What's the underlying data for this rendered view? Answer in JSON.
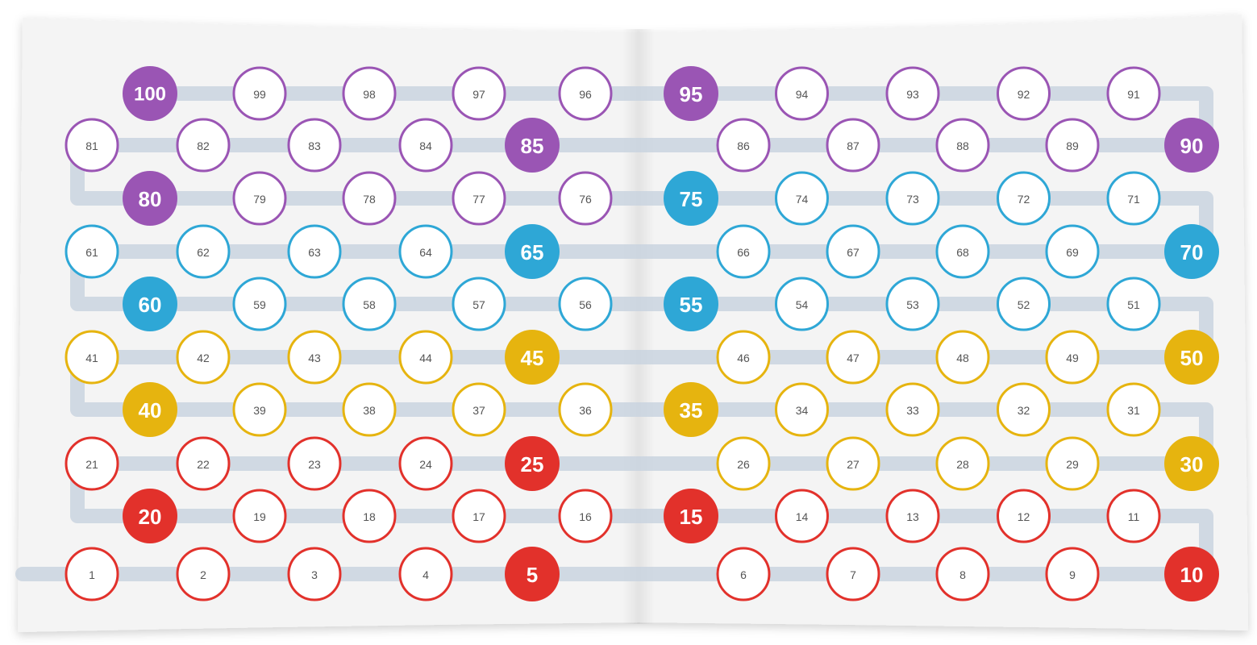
{
  "colors": {
    "page": "#f4f4f4",
    "path": "#c9d4df",
    "purple": "#9a55b4",
    "blue": "#2ea7d6",
    "yellow": "#e6b40f",
    "red": "#e2312b"
  },
  "circles": [
    {
      "n": "1",
      "c": "red"
    },
    {
      "n": "2",
      "c": "red"
    },
    {
      "n": "3",
      "c": "red"
    },
    {
      "n": "4",
      "c": "red"
    },
    {
      "n": "5",
      "c": "red",
      "filled": true
    },
    {
      "n": "6",
      "c": "red"
    },
    {
      "n": "7",
      "c": "red"
    },
    {
      "n": "8",
      "c": "red"
    },
    {
      "n": "9",
      "c": "red"
    },
    {
      "n": "10",
      "c": "red",
      "filled": true
    },
    {
      "n": "11",
      "c": "red"
    },
    {
      "n": "12",
      "c": "red"
    },
    {
      "n": "13",
      "c": "red"
    },
    {
      "n": "14",
      "c": "red"
    },
    {
      "n": "15",
      "c": "red",
      "filled": true
    },
    {
      "n": "16",
      "c": "red"
    },
    {
      "n": "17",
      "c": "red"
    },
    {
      "n": "18",
      "c": "red"
    },
    {
      "n": "19",
      "c": "red"
    },
    {
      "n": "20",
      "c": "red",
      "filled": true
    },
    {
      "n": "21",
      "c": "red"
    },
    {
      "n": "22",
      "c": "red"
    },
    {
      "n": "23",
      "c": "red"
    },
    {
      "n": "24",
      "c": "red"
    },
    {
      "n": "25",
      "c": "red",
      "filled": true
    },
    {
      "n": "26",
      "c": "yellow"
    },
    {
      "n": "27",
      "c": "yellow"
    },
    {
      "n": "28",
      "c": "yellow"
    },
    {
      "n": "29",
      "c": "yellow"
    },
    {
      "n": "30",
      "c": "yellow",
      "filled": true
    },
    {
      "n": "31",
      "c": "yellow"
    },
    {
      "n": "32",
      "c": "yellow"
    },
    {
      "n": "33",
      "c": "yellow"
    },
    {
      "n": "34",
      "c": "yellow"
    },
    {
      "n": "35",
      "c": "yellow",
      "filled": true
    },
    {
      "n": "36",
      "c": "yellow"
    },
    {
      "n": "37",
      "c": "yellow"
    },
    {
      "n": "38",
      "c": "yellow"
    },
    {
      "n": "39",
      "c": "yellow"
    },
    {
      "n": "40",
      "c": "yellow",
      "filled": true
    },
    {
      "n": "41",
      "c": "yellow"
    },
    {
      "n": "42",
      "c": "yellow"
    },
    {
      "n": "43",
      "c": "yellow"
    },
    {
      "n": "44",
      "c": "yellow"
    },
    {
      "n": "45",
      "c": "yellow",
      "filled": true
    },
    {
      "n": "46",
      "c": "yellow"
    },
    {
      "n": "47",
      "c": "yellow"
    },
    {
      "n": "48",
      "c": "yellow"
    },
    {
      "n": "49",
      "c": "yellow"
    },
    {
      "n": "50",
      "c": "yellow",
      "filled": true
    },
    {
      "n": "51",
      "c": "blue"
    },
    {
      "n": "52",
      "c": "blue"
    },
    {
      "n": "53",
      "c": "blue"
    },
    {
      "n": "54",
      "c": "blue"
    },
    {
      "n": "55",
      "c": "blue",
      "filled": true
    },
    {
      "n": "56",
      "c": "blue"
    },
    {
      "n": "57",
      "c": "blue"
    },
    {
      "n": "58",
      "c": "blue"
    },
    {
      "n": "59",
      "c": "blue"
    },
    {
      "n": "60",
      "c": "blue",
      "filled": true
    },
    {
      "n": "61",
      "c": "blue"
    },
    {
      "n": "62",
      "c": "blue"
    },
    {
      "n": "63",
      "c": "blue"
    },
    {
      "n": "64",
      "c": "blue"
    },
    {
      "n": "65",
      "c": "blue",
      "filled": true
    },
    {
      "n": "66",
      "c": "blue"
    },
    {
      "n": "67",
      "c": "blue"
    },
    {
      "n": "68",
      "c": "blue"
    },
    {
      "n": "69",
      "c": "blue"
    },
    {
      "n": "70",
      "c": "blue",
      "filled": true
    },
    {
      "n": "71",
      "c": "blue"
    },
    {
      "n": "72",
      "c": "blue"
    },
    {
      "n": "73",
      "c": "blue"
    },
    {
      "n": "74",
      "c": "blue"
    },
    {
      "n": "75",
      "c": "blue",
      "filled": true
    },
    {
      "n": "76",
      "c": "purple"
    },
    {
      "n": "77",
      "c": "purple"
    },
    {
      "n": "78",
      "c": "purple"
    },
    {
      "n": "79",
      "c": "purple"
    },
    {
      "n": "80",
      "c": "purple",
      "filled": true
    },
    {
      "n": "81",
      "c": "purple"
    },
    {
      "n": "82",
      "c": "purple"
    },
    {
      "n": "83",
      "c": "purple"
    },
    {
      "n": "84",
      "c": "purple"
    },
    {
      "n": "85",
      "c": "purple",
      "filled": true
    },
    {
      "n": "86",
      "c": "purple"
    },
    {
      "n": "87",
      "c": "purple"
    },
    {
      "n": "88",
      "c": "purple"
    },
    {
      "n": "89",
      "c": "purple"
    },
    {
      "n": "90",
      "c": "purple",
      "filled": true
    },
    {
      "n": "91",
      "c": "purple"
    },
    {
      "n": "92",
      "c": "purple"
    },
    {
      "n": "93",
      "c": "purple"
    },
    {
      "n": "94",
      "c": "purple"
    },
    {
      "n": "95",
      "c": "purple",
      "filled": true
    },
    {
      "n": "96",
      "c": "purple"
    },
    {
      "n": "97",
      "c": "purple"
    },
    {
      "n": "98",
      "c": "purple"
    },
    {
      "n": "99",
      "c": "purple"
    },
    {
      "n": "100",
      "c": "purple",
      "filled": true
    }
  ]
}
